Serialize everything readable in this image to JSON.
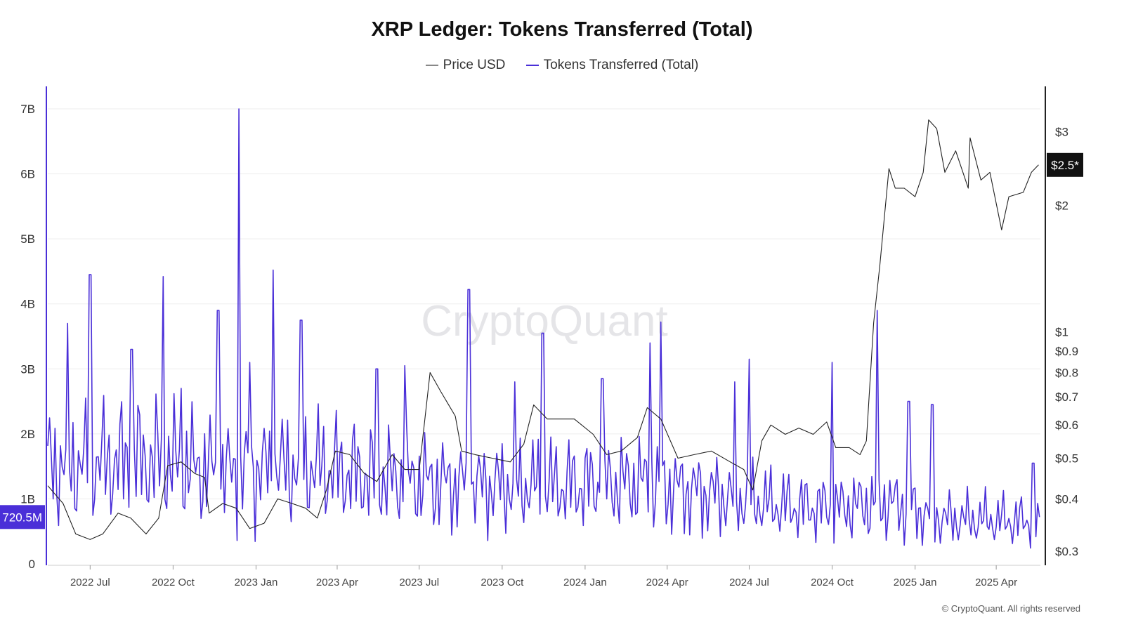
{
  "chart_data": {
    "type": "line",
    "title": "XRP Ledger: Tokens Transferred (Total)",
    "watermark": "CryptoQuant",
    "copyright": "© CryptoQuant. All rights reserved",
    "x_range": [
      "2022-05-15",
      "2025-05-20"
    ],
    "x_ticks": [
      {
        "label": "2022 Jul",
        "date": "2022-07-01"
      },
      {
        "label": "2022 Oct",
        "date": "2022-10-01"
      },
      {
        "label": "2023 Jan",
        "date": "2023-01-01"
      },
      {
        "label": "2023 Apr",
        "date": "2023-04-01"
      },
      {
        "label": "2023 Jul",
        "date": "2023-07-01"
      },
      {
        "label": "2023 Oct",
        "date": "2023-10-01"
      },
      {
        "label": "2024 Jan",
        "date": "2024-01-01"
      },
      {
        "label": "2024 Apr",
        "date": "2024-04-01"
      },
      {
        "label": "2024 Jul",
        "date": "2024-07-01"
      },
      {
        "label": "2024 Oct",
        "date": "2024-10-01"
      },
      {
        "label": "2025 Jan",
        "date": "2025-01-01"
      },
      {
        "label": "2025 Apr",
        "date": "2025-04-01"
      }
    ],
    "y_left": {
      "ylim": [
        0,
        7000000000
      ],
      "ticks": [
        {
          "label": "0",
          "value": 0
        },
        {
          "label": "1B",
          "value": 1000000000
        },
        {
          "label": "2B",
          "value": 2000000000
        },
        {
          "label": "3B",
          "value": 3000000000
        },
        {
          "label": "4B",
          "value": 4000000000
        },
        {
          "label": "5B",
          "value": 5000000000
        },
        {
          "label": "6B",
          "value": 6000000000
        },
        {
          "label": "7B",
          "value": 7000000000
        }
      ],
      "current_label": "720.5M",
      "current_value": 720500000
    },
    "y_right": {
      "scale": "log",
      "ylim": [
        0.28,
        3.4
      ],
      "ticks": [
        {
          "label": "$0.3",
          "value": 0.3
        },
        {
          "label": "$0.4",
          "value": 0.4
        },
        {
          "label": "$0.5",
          "value": 0.5
        },
        {
          "label": "$0.6",
          "value": 0.6
        },
        {
          "label": "$0.7",
          "value": 0.7
        },
        {
          "label": "$0.8",
          "value": 0.8
        },
        {
          "label": "$0.9",
          "value": 0.9
        },
        {
          "label": "$1",
          "value": 1
        },
        {
          "label": "$2",
          "value": 2
        },
        {
          "label": "$3",
          "value": 3
        }
      ],
      "current_label": "$2.5*",
      "current_value": 2.5
    },
    "series": [
      {
        "name": "Price USD",
        "axis": "right",
        "color": "#222222",
        "points": [
          [
            "2022-05-15",
            0.43
          ],
          [
            "2022-06-01",
            0.39
          ],
          [
            "2022-06-15",
            0.33
          ],
          [
            "2022-07-01",
            0.32
          ],
          [
            "2022-07-15",
            0.33
          ],
          [
            "2022-08-01",
            0.37
          ],
          [
            "2022-08-15",
            0.36
          ],
          [
            "2022-09-01",
            0.33
          ],
          [
            "2022-09-15",
            0.36
          ],
          [
            "2022-09-25",
            0.48
          ],
          [
            "2022-10-10",
            0.49
          ],
          [
            "2022-10-25",
            0.46
          ],
          [
            "2022-11-05",
            0.45
          ],
          [
            "2022-11-10",
            0.37
          ],
          [
            "2022-11-25",
            0.39
          ],
          [
            "2022-12-10",
            0.38
          ],
          [
            "2022-12-25",
            0.34
          ],
          [
            "2023-01-10",
            0.35
          ],
          [
            "2023-01-25",
            0.4
          ],
          [
            "2023-02-10",
            0.39
          ],
          [
            "2023-02-25",
            0.38
          ],
          [
            "2023-03-10",
            0.36
          ],
          [
            "2023-03-20",
            0.42
          ],
          [
            "2023-03-30",
            0.52
          ],
          [
            "2023-04-15",
            0.51
          ],
          [
            "2023-05-01",
            0.46
          ],
          [
            "2023-05-15",
            0.44
          ],
          [
            "2023-06-01",
            0.51
          ],
          [
            "2023-06-15",
            0.47
          ],
          [
            "2023-07-01",
            0.47
          ],
          [
            "2023-07-13",
            0.8
          ],
          [
            "2023-07-25",
            0.72
          ],
          [
            "2023-08-10",
            0.63
          ],
          [
            "2023-08-17",
            0.52
          ],
          [
            "2023-09-01",
            0.51
          ],
          [
            "2023-09-20",
            0.5
          ],
          [
            "2023-10-10",
            0.49
          ],
          [
            "2023-10-25",
            0.54
          ],
          [
            "2023-11-05",
            0.67
          ],
          [
            "2023-11-20",
            0.62
          ],
          [
            "2023-12-05",
            0.62
          ],
          [
            "2023-12-20",
            0.62
          ],
          [
            "2024-01-10",
            0.57
          ],
          [
            "2024-01-25",
            0.51
          ],
          [
            "2024-02-10",
            0.52
          ],
          [
            "2024-02-28",
            0.56
          ],
          [
            "2024-03-10",
            0.66
          ],
          [
            "2024-03-25",
            0.62
          ],
          [
            "2024-04-13",
            0.5
          ],
          [
            "2024-05-01",
            0.51
          ],
          [
            "2024-05-20",
            0.52
          ],
          [
            "2024-06-10",
            0.49
          ],
          [
            "2024-06-25",
            0.47
          ],
          [
            "2024-07-05",
            0.42
          ],
          [
            "2024-07-15",
            0.55
          ],
          [
            "2024-07-25",
            0.6
          ],
          [
            "2024-08-10",
            0.57
          ],
          [
            "2024-08-25",
            0.59
          ],
          [
            "2024-09-10",
            0.57
          ],
          [
            "2024-09-25",
            0.61
          ],
          [
            "2024-10-05",
            0.53
          ],
          [
            "2024-10-20",
            0.53
          ],
          [
            "2024-11-01",
            0.51
          ],
          [
            "2024-11-08",
            0.55
          ],
          [
            "2024-11-16",
            1.05
          ],
          [
            "2024-11-23",
            1.45
          ],
          [
            "2024-12-03",
            2.45
          ],
          [
            "2024-12-10",
            2.2
          ],
          [
            "2024-12-20",
            2.2
          ],
          [
            "2025-01-01",
            2.1
          ],
          [
            "2025-01-10",
            2.4
          ],
          [
            "2025-01-16",
            3.2
          ],
          [
            "2025-01-25",
            3.05
          ],
          [
            "2025-02-03",
            2.4
          ],
          [
            "2025-02-15",
            2.7
          ],
          [
            "2025-03-01",
            2.2
          ],
          [
            "2025-03-03",
            2.9
          ],
          [
            "2025-03-15",
            2.3
          ],
          [
            "2025-03-25",
            2.4
          ],
          [
            "2025-04-07",
            1.75
          ],
          [
            "2025-04-15",
            2.1
          ],
          [
            "2025-05-01",
            2.15
          ],
          [
            "2025-05-10",
            2.4
          ],
          [
            "2025-05-18",
            2.5
          ]
        ]
      },
      {
        "name": "Tokens Transferred (Total)",
        "axis": "left",
        "color": "#4a2fd8",
        "baseline_level": 1400000000,
        "baseline": [
          [
            "2022-05-15",
            1.5
          ],
          [
            "2022-09-01",
            1.6
          ],
          [
            "2022-12-01",
            1.4
          ],
          [
            "2023-03-01",
            1.5
          ],
          [
            "2023-06-01",
            1.3
          ],
          [
            "2023-09-01",
            1.2
          ],
          [
            "2023-12-01",
            1.2
          ],
          [
            "2024-03-01",
            1.25
          ],
          [
            "2024-06-01",
            1.05
          ],
          [
            "2024-08-01",
            0.9
          ],
          [
            "2024-10-01",
            0.85
          ],
          [
            "2024-12-01",
            0.95
          ],
          [
            "2025-02-01",
            0.7
          ],
          [
            "2025-05-20",
            0.65
          ]
        ],
        "spikes": [
          [
            "2022-06-06",
            3.7
          ],
          [
            "2022-07-01",
            4.45
          ],
          [
            "2022-08-16",
            3.3
          ],
          [
            "2022-09-20",
            4.42
          ],
          [
            "2022-10-10",
            2.7
          ],
          [
            "2022-11-20",
            3.9
          ],
          [
            "2022-12-13",
            7.0
          ],
          [
            "2022-12-25",
            3.1
          ],
          [
            "2023-01-20",
            4.52
          ],
          [
            "2023-02-20",
            3.75
          ],
          [
            "2023-05-15",
            3.0
          ],
          [
            "2023-06-15",
            3.05
          ],
          [
            "2023-08-25",
            4.22
          ],
          [
            "2023-10-15",
            2.8
          ],
          [
            "2023-11-15",
            3.55
          ],
          [
            "2024-01-20",
            2.85
          ],
          [
            "2024-03-13",
            3.4
          ],
          [
            "2024-03-25",
            3.72
          ],
          [
            "2024-06-15",
            2.8
          ],
          [
            "2024-07-01",
            3.15
          ],
          [
            "2024-10-01",
            3.1
          ],
          [
            "2024-11-20",
            3.9
          ],
          [
            "2024-12-25",
            2.5
          ],
          [
            "2025-01-20",
            2.45
          ],
          [
            "2025-05-12",
            1.55
          ]
        ]
      }
    ]
  }
}
